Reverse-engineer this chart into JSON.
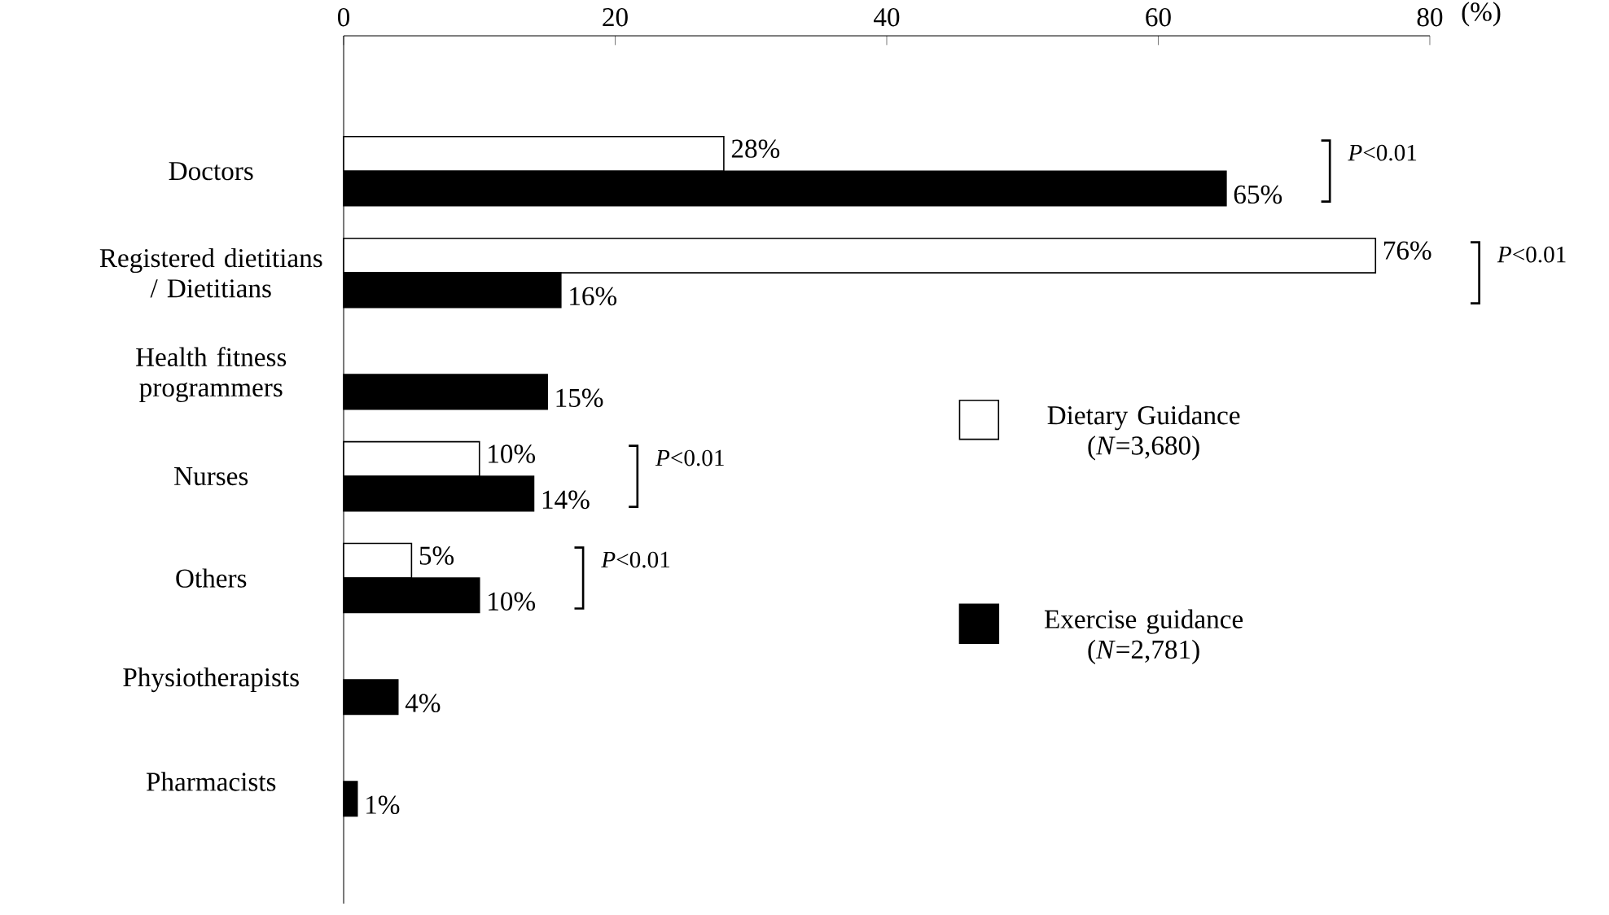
{
  "chart_data": {
    "type": "bar",
    "orientation": "horizontal",
    "categories": [
      "Doctors",
      "Registered dietitians / Dietitians",
      "Health fitness programmers",
      "Nurses",
      "Others",
      "Physiotherapists",
      "Pharmacists"
    ],
    "series": [
      {
        "name": "Dietary Guidance (*N*=3,680)",
        "color": "#ffffff",
        "values": [
          28,
          76,
          null,
          10,
          5,
          null,
          null
        ],
        "value_labels": [
          "28%",
          "76%",
          null,
          "10%",
          "5%",
          null,
          null
        ]
      },
      {
        "name": "Exercise guidance (*N*=2,781)",
        "color": "#000000",
        "values": [
          65,
          16,
          15,
          14,
          10,
          4,
          1
        ],
        "value_labels": [
          "65%",
          "16%",
          "15%",
          "14%",
          "10%",
          "4%",
          "1%"
        ]
      }
    ],
    "xlabel": "(%)",
    "xlim": [
      0,
      80
    ],
    "xticks": [
      0,
      20,
      40,
      60,
      80
    ],
    "legend": "right",
    "annotations": [
      "*P*<0.01",
      "*P*<0.01",
      "*P*<0.01",
      "*P*<0.01"
    ]
  }
}
